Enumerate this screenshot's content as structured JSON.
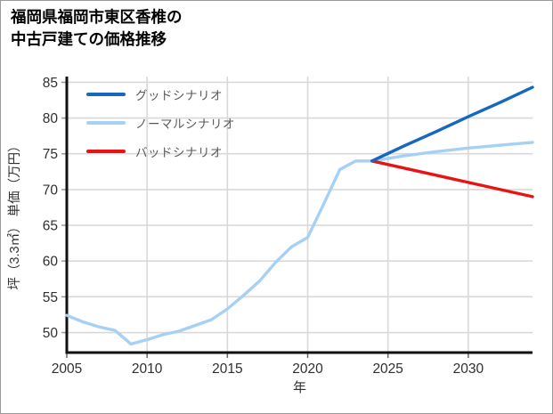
{
  "page": {
    "background": "#ffffff",
    "frame_border_color": "#9a9a9a"
  },
  "title": {
    "line1": "福岡県福岡市東区香椎の",
    "line2": "中古戸建ての価格推移"
  },
  "chart_data": {
    "type": "line",
    "title": "福岡県福岡市東区香椎の中古戸建ての価格推移",
    "xlabel": "年",
    "ylabel": "坪（3.3㎡） 単価（万円）",
    "xlim": [
      2005,
      2034
    ],
    "ylim": [
      47.2,
      85.8
    ],
    "x_ticks": [
      2005,
      2010,
      2015,
      2020,
      2025,
      2030
    ],
    "y_ticks": [
      50,
      55,
      60,
      65,
      70,
      75,
      80,
      85
    ],
    "grid": true,
    "legend_position": "upper-left",
    "colors": {
      "grid": "#d9d9d9",
      "axis": "#111111",
      "tick_label": "#303030",
      "axis_label": "#303030",
      "legend_text": "#595959"
    },
    "series": [
      {
        "name": "グッドシナリオ",
        "color": "#1567c0",
        "x": [
          2024,
          2026,
          2028,
          2030,
          2032,
          2034
        ],
        "values": [
          74.0,
          76.1,
          78.1,
          80.2,
          82.2,
          84.3
        ]
      },
      {
        "name": "ノーマルシナリオ",
        "color": "#a6d1f4",
        "x": [
          2005,
          2006,
          2007,
          2008,
          2009,
          2010,
          2011,
          2012,
          2013,
          2014,
          2015,
          2016,
          2017,
          2018,
          2019,
          2020,
          2021,
          2022,
          2023,
          2024,
          2026,
          2028,
          2030,
          2032,
          2034
        ],
        "values": [
          52.4,
          51.5,
          50.8,
          50.3,
          48.4,
          49.0,
          49.7,
          50.2,
          51.0,
          51.8,
          53.3,
          55.2,
          57.2,
          59.8,
          62.0,
          63.3,
          68.0,
          72.8,
          74.0,
          74.0,
          74.7,
          75.3,
          75.8,
          76.2,
          76.6
        ]
      },
      {
        "name": "バッドシナリオ",
        "color": "#e81414",
        "x": [
          2024,
          2026,
          2028,
          2030,
          2032,
          2034
        ],
        "values": [
          74.0,
          73.0,
          72.0,
          71.0,
          70.0,
          69.0
        ]
      }
    ]
  }
}
